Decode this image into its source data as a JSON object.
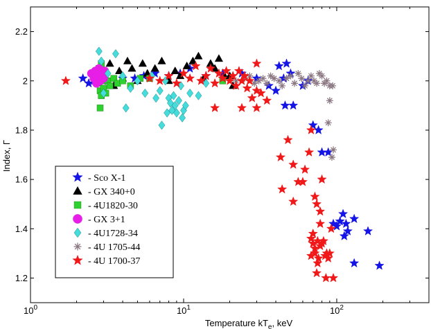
{
  "chart_data": {
    "type": "scatter",
    "x_scale": "log",
    "xlim": [
      1,
      400
    ],
    "ylim": [
      1.1,
      2.3
    ],
    "xlabel": "Temperature kT",
    "xlabel_sub": "e",
    "xlabel_suffix": ", keV",
    "ylabel": "Index, Γ",
    "x_ticks": [
      {
        "value": 1,
        "base": "10",
        "exp": "0"
      },
      {
        "value": 10,
        "base": "10",
        "exp": "1"
      },
      {
        "value": 100,
        "base": "10",
        "exp": "2"
      }
    ],
    "y_ticks": [
      {
        "value": 1.2,
        "label": "1.2"
      },
      {
        "value": 1.4,
        "label": "1.4"
      },
      {
        "value": 1.6,
        "label": "1.6"
      },
      {
        "value": 1.8,
        "label": "1.8"
      },
      {
        "value": 2.0,
        "label": "2"
      },
      {
        "value": 2.2,
        "label": "2.2"
      }
    ],
    "legend_position": "bottom-left",
    "series": [
      {
        "name": "- Sco X-1",
        "marker": "star",
        "color": "#1414e6",
        "points": [
          [
            2.2,
            2.01
          ],
          [
            2.4,
            1.99
          ],
          [
            2.6,
            2.0
          ],
          [
            2.8,
            2.02
          ],
          [
            3.2,
            2.0
          ],
          [
            4.0,
            2.01
          ],
          [
            4.8,
            2.01
          ],
          [
            5.5,
            2.02
          ],
          [
            6.5,
            2.03
          ],
          [
            8.0,
            2.02
          ],
          [
            9.5,
            2.03
          ],
          [
            11,
            2.05
          ],
          [
            14,
            2.02
          ],
          [
            18,
            2.03
          ],
          [
            24,
            2.03
          ],
          [
            30,
            2.01
          ],
          [
            36,
            1.98
          ],
          [
            40,
            1.96
          ],
          [
            42,
            2.06
          ],
          [
            45,
            2.01
          ],
          [
            47,
            2.07
          ],
          [
            50,
            2.03
          ],
          [
            46,
            1.9
          ],
          [
            52,
            1.9
          ],
          [
            60,
            1.98
          ],
          [
            65,
            2.0
          ],
          [
            70,
            1.82
          ],
          [
            76,
            1.8
          ],
          [
            80,
            1.71
          ],
          [
            88,
            1.71
          ],
          [
            95,
            1.42
          ],
          [
            100,
            1.41
          ],
          [
            105,
            1.43
          ],
          [
            110,
            1.46
          ],
          [
            115,
            1.42
          ],
          [
            118,
            1.39
          ],
          [
            130,
            1.44
          ],
          [
            112,
            1.37
          ],
          [
            160,
            1.39
          ],
          [
            130,
            1.26
          ],
          [
            190,
            1.25
          ]
        ]
      },
      {
        "name": "- GX 340+0",
        "marker": "triangle",
        "color": "#000000",
        "points": [
          [
            2.9,
            2.0
          ],
          [
            3.1,
            2.04
          ],
          [
            3.3,
            2.07
          ],
          [
            3.5,
            1.98
          ],
          [
            3.8,
            2.04
          ],
          [
            4.0,
            2.01
          ],
          [
            4.3,
            2.08
          ],
          [
            4.6,
            2.05
          ],
          [
            5.0,
            2.0
          ],
          [
            5.4,
            2.07
          ],
          [
            5.8,
            2.03
          ],
          [
            6.5,
            2.05
          ],
          [
            7.2,
            2.08
          ],
          [
            8.0,
            2.0
          ],
          [
            8.8,
            2.04
          ],
          [
            9.5,
            2.02
          ],
          [
            10.5,
            2.06
          ],
          [
            11.5,
            2.08
          ],
          [
            12.5,
            2.1
          ],
          [
            13.5,
            2.01
          ],
          [
            15,
            2.07
          ],
          [
            16,
            2.05
          ],
          [
            17,
            2.09
          ],
          [
            18.5,
            2.02
          ],
          [
            20,
            2.02
          ],
          [
            21,
            1.98
          ]
        ]
      },
      {
        "name": "- 4U1820-30",
        "marker": "square",
        "color": "#2ed12e",
        "points": [
          [
            2.75,
            2.02
          ],
          [
            2.8,
            2.05
          ],
          [
            2.8,
            1.99
          ],
          [
            2.85,
            1.96
          ],
          [
            2.9,
            2.07
          ],
          [
            2.9,
            1.94
          ],
          [
            2.95,
            2.0
          ],
          [
            3.0,
            1.97
          ],
          [
            3.05,
            2.03
          ],
          [
            3.1,
            1.95
          ],
          [
            2.85,
            1.89
          ],
          [
            3.2,
            2.0
          ],
          [
            3.3,
            1.98
          ],
          [
            3.5,
            2.01
          ],
          [
            3.7,
            1.99
          ],
          [
            4.0,
            2.0
          ],
          [
            4.5,
            1.98
          ],
          [
            5.2,
            2.01
          ],
          [
            6.0,
            2.01
          ],
          [
            18,
            2.0
          ]
        ]
      },
      {
        "name": "- GX 3+1",
        "marker": "circle",
        "color": "#e61ee6",
        "points": [
          [
            2.5,
            2.03
          ],
          [
            2.6,
            2.01
          ],
          [
            2.65,
            2.04
          ],
          [
            2.7,
            1.99
          ],
          [
            2.75,
            2.02
          ],
          [
            2.8,
            2.05
          ],
          [
            2.85,
            2.0
          ],
          [
            2.9,
            2.03
          ],
          [
            3.0,
            2.01
          ],
          [
            3.05,
            2.04
          ]
        ]
      },
      {
        "name": "- 4U1728-34",
        "marker": "diamond",
        "color": "#46dcdc",
        "points": [
          [
            2.8,
            2.12
          ],
          [
            2.9,
            2.08
          ],
          [
            3.0,
            1.95
          ],
          [
            3.2,
            2.03
          ],
          [
            3.6,
            2.11
          ],
          [
            4.0,
            2.02
          ],
          [
            4.5,
            1.97
          ],
          [
            5.0,
            2.0
          ],
          [
            5.6,
            1.95
          ],
          [
            6.2,
            2.02
          ],
          [
            4.2,
            1.89
          ],
          [
            6.6,
            1.93
          ],
          [
            7.0,
            1.96
          ],
          [
            7.2,
            1.82
          ],
          [
            7.6,
            2.0
          ],
          [
            7.8,
            1.87
          ],
          [
            8.0,
            1.93
          ],
          [
            8.2,
            1.91
          ],
          [
            8.4,
            1.88
          ],
          [
            8.6,
            1.94
          ],
          [
            8.8,
            1.9
          ],
          [
            9.0,
            1.87
          ],
          [
            9.3,
            1.92
          ],
          [
            9.6,
            1.98
          ],
          [
            9.8,
            1.85
          ],
          [
            10.0,
            1.88
          ],
          [
            10.3,
            1.9
          ],
          [
            11,
            1.95
          ],
          [
            12.5,
            1.94
          ],
          [
            14,
            1.99
          ]
        ]
      },
      {
        "name": "- 4U 1705-44",
        "marker": "asterisk",
        "color": "#8c7882",
        "points": [
          [
            22,
            2.0
          ],
          [
            25,
            2.01
          ],
          [
            27,
            2.02
          ],
          [
            29,
            1.99
          ],
          [
            31,
            2.0
          ],
          [
            33,
            2.01
          ],
          [
            35,
            1.99
          ],
          [
            37,
            2.02
          ],
          [
            39,
            2.01
          ],
          [
            42,
            2.0
          ],
          [
            44,
            1.98
          ],
          [
            47,
            2.01
          ],
          [
            50,
            2.02
          ],
          [
            53,
            1.99
          ],
          [
            56,
            2.03
          ],
          [
            59,
            2.01
          ],
          [
            62,
            1.98
          ],
          [
            65,
            2.0
          ],
          [
            68,
            2.02
          ],
          [
            71,
            2.0
          ],
          [
            74,
            1.99
          ],
          [
            77,
            2.03
          ],
          [
            80,
            2.02
          ],
          [
            83,
            1.99
          ],
          [
            86,
            2.0
          ],
          [
            90,
            1.98
          ],
          [
            94,
            1.98
          ],
          [
            90,
            1.92
          ],
          [
            88,
            1.83
          ],
          [
            93,
            1.69
          ],
          [
            95,
            1.72
          ]
        ]
      },
      {
        "name": "- 4U 1700-37",
        "marker": "star",
        "color": "#f01818",
        "points": [
          [
            1.7,
            2.0
          ],
          [
            6.0,
            2.01
          ],
          [
            7.0,
            2.0
          ],
          [
            8.0,
            2.02
          ],
          [
            9.0,
            1.99
          ],
          [
            10.0,
            2.03
          ],
          [
            11,
            2.01
          ],
          [
            12,
            2.06
          ],
          [
            13,
            2.0
          ],
          [
            14,
            2.02
          ],
          [
            15,
            2.05
          ],
          [
            16,
            1.99
          ],
          [
            17,
            2.03
          ],
          [
            18,
            2.01
          ],
          [
            19,
            2.04
          ],
          [
            20,
            2.0
          ],
          [
            21,
            2.02
          ],
          [
            22,
            1.98
          ],
          [
            23,
            2.04
          ],
          [
            24,
            2.0
          ],
          [
            25,
            2.02
          ],
          [
            26,
            1.97
          ],
          [
            27,
            2.0
          ],
          [
            28,
            1.93
          ],
          [
            30,
            2.07
          ],
          [
            30,
            1.96
          ],
          [
            32,
            1.95
          ],
          [
            35,
            1.92
          ],
          [
            16,
            1.89
          ],
          [
            24,
            1.89
          ],
          [
            30,
            1.89
          ],
          [
            43,
            1.69
          ],
          [
            48,
            1.76
          ],
          [
            52,
            1.66
          ],
          [
            56,
            1.59
          ],
          [
            60,
            1.59
          ],
          [
            62,
            1.64
          ],
          [
            66,
            1.71
          ],
          [
            68,
            1.8
          ],
          [
            72,
            1.53
          ],
          [
            74,
            1.5
          ],
          [
            80,
            1.6
          ],
          [
            44,
            1.56
          ],
          [
            52,
            1.51
          ],
          [
            78,
            1.47
          ],
          [
            78,
            1.42
          ],
          [
            68,
            1.36
          ],
          [
            70,
            1.34
          ],
          [
            72,
            1.32
          ],
          [
            75,
            1.35
          ],
          [
            78,
            1.33
          ],
          [
            80,
            1.34
          ],
          [
            82,
            1.35
          ],
          [
            84,
            1.29
          ],
          [
            86,
            1.3
          ],
          [
            88,
            1.28
          ],
          [
            72,
            1.3
          ],
          [
            75,
            1.26
          ],
          [
            70,
            1.38
          ],
          [
            68,
            1.29
          ],
          [
            90,
            1.3
          ],
          [
            85,
            1.2
          ],
          [
            95,
            1.2
          ],
          [
            92,
            1.4
          ],
          [
            76,
            1.28
          ],
          [
            74,
            1.22
          ]
        ]
      }
    ]
  }
}
